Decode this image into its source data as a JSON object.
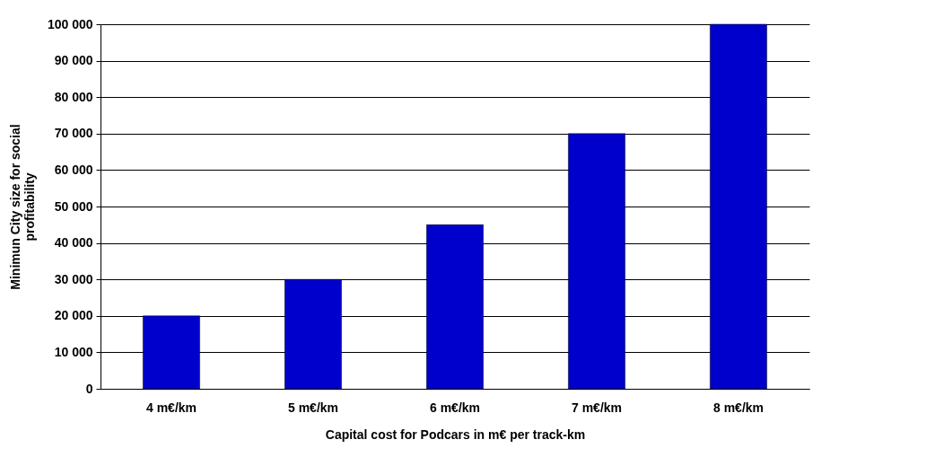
{
  "chart_data": {
    "type": "bar",
    "xlabel": "Capital cost for Podcars in m€ per track-km",
    "ylabel": "Minimun City size for social profitability",
    "categories": [
      "4 m€/km",
      "5 m€/km",
      "6 m€/km",
      "7 m€/km",
      "8 m€/km"
    ],
    "values": [
      20000,
      30000,
      45000,
      70000,
      100000
    ],
    "color": "#0000cc",
    "ylim": [
      0,
      100000
    ],
    "yticks": [
      0,
      {
        "value": 10000,
        "label": "10 000"
      },
      {
        "value": 20000,
        "label": "20 000"
      },
      {
        "value": 30000,
        "label": "30 000"
      },
      {
        "value": 40000,
        "label": "40 000"
      },
      {
        "value": 50000,
        "label": "50 000"
      },
      {
        "value": 60000,
        "label": "60 000"
      },
      {
        "value": 70000,
        "label": "70 000"
      },
      {
        "value": 80000,
        "label": "80 000"
      },
      {
        "value": 90000,
        "label": "90 000"
      },
      {
        "value": 100000,
        "label": "100 000"
      }
    ],
    "grid": "y"
  }
}
